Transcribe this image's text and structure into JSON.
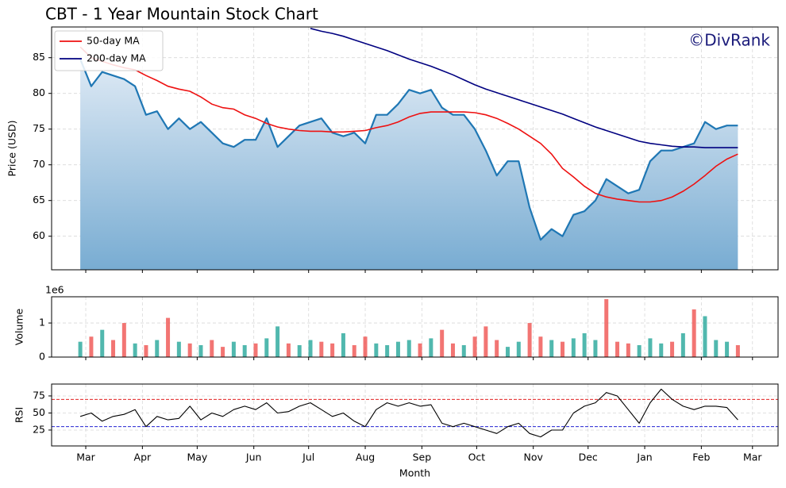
{
  "chart_data": [
    {
      "type": "line",
      "title": "CBT - 1 Year Mountain Stock Chart",
      "ylabel": "Price (USD)",
      "watermark": "©DivRank",
      "watermark_color": "#1a1a7a",
      "x": [
        -3,
        3,
        9,
        15,
        21,
        27,
        33,
        39,
        45,
        51,
        57,
        63,
        69,
        75,
        81,
        87,
        93,
        99,
        105,
        111,
        117,
        123,
        129,
        135,
        141,
        147,
        153,
        159,
        165,
        171,
        177,
        183,
        189,
        195,
        201,
        207,
        213,
        219,
        225,
        231,
        237,
        243,
        249,
        255,
        261,
        267,
        273,
        279,
        285,
        291,
        297,
        303,
        309,
        315,
        321,
        327,
        333,
        339,
        345,
        351,
        357
      ],
      "values": [
        84.8,
        81,
        83,
        82.5,
        82,
        81,
        77,
        77.5,
        75,
        76.5,
        75,
        76,
        74.5,
        73,
        72.5,
        73.5,
        73.5,
        76.5,
        72.5,
        74,
        75.5,
        76,
        76.5,
        74.5,
        74,
        74.5,
        73,
        77,
        77,
        78.5,
        80.5,
        80,
        80.5,
        78,
        77,
        77,
        75,
        72,
        68.5,
        70.5,
        70.5,
        64,
        59.5,
        61,
        60,
        63,
        63.5,
        65,
        68,
        67,
        66,
        66.5,
        70.5,
        72,
        72,
        72.5,
        73,
        76,
        75,
        75.5,
        75.5
      ],
      "color": "#1f77b4",
      "fill_colors": [
        "#dfeaf5",
        "#78acd2"
      ],
      "series": [
        {
          "name": "50-day MA",
          "color": "#ee1111",
          "values": [
            86.5,
            85,
            84.5,
            84,
            83.6,
            83.3,
            82.5,
            81.8,
            81,
            80.6,
            80.3,
            79.5,
            78.5,
            78,
            77.8,
            77,
            76.5,
            75.8,
            75.3,
            75,
            74.8,
            74.7,
            74.7,
            74.6,
            74.6,
            74.7,
            74.8,
            75.2,
            75.5,
            76,
            76.7,
            77.2,
            77.4,
            77.4,
            77.4,
            77.4,
            77.3,
            77,
            76.5,
            75.8,
            75,
            74,
            73,
            71.5,
            69.5,
            68.3,
            67,
            66,
            65.5,
            65.2,
            65,
            64.8,
            64.8,
            65,
            65.5,
            66.3,
            67.3,
            68.5,
            69.8,
            70.8,
            71.5
          ]
        },
        {
          "name": "200-day MA",
          "color": "#000080",
          "values": [
            null,
            null,
            null,
            null,
            null,
            null,
            null,
            null,
            null,
            null,
            null,
            null,
            null,
            null,
            null,
            null,
            null,
            null,
            null,
            null,
            null,
            89.1,
            88.7,
            88.4,
            88,
            87.5,
            87,
            86.5,
            86,
            85.4,
            84.8,
            84.3,
            83.8,
            83.2,
            82.6,
            81.9,
            81.2,
            80.6,
            80.1,
            79.6,
            79.1,
            78.6,
            78.1,
            77.6,
            77.1,
            76.5,
            75.9,
            75.3,
            74.8,
            74.3,
            73.8,
            73.3,
            73,
            72.8,
            72.6,
            72.5,
            72.5,
            72.4,
            72.4,
            72.4,
            72.4
          ]
        }
      ],
      "legend": "upper left",
      "grid": true,
      "xlim": [
        -18.7,
        379
      ],
      "xticks": [
        0,
        31,
        61,
        92,
        122,
        153,
        184,
        214,
        245,
        275,
        306,
        337,
        365
      ],
      "ylim": [
        55.3,
        89.3
      ],
      "yticks": [
        60,
        65,
        70,
        75,
        80,
        85
      ]
    },
    {
      "type": "bar",
      "ylabel": "Volume",
      "offset_label": "1e6",
      "x": [
        -3,
        3,
        9,
        15,
        21,
        27,
        33,
        39,
        45,
        51,
        57,
        63,
        69,
        75,
        81,
        87,
        93,
        99,
        105,
        111,
        117,
        123,
        129,
        135,
        141,
        147,
        153,
        159,
        165,
        171,
        177,
        183,
        189,
        195,
        201,
        207,
        213,
        219,
        225,
        231,
        237,
        243,
        249,
        255,
        261,
        267,
        273,
        279,
        285,
        291,
        297,
        303,
        309,
        315,
        321,
        327,
        333,
        339,
        345,
        351,
        357
      ],
      "values": [
        450000,
        600000,
        800000,
        500000,
        1000000,
        400000,
        350000,
        500000,
        1150000,
        450000,
        400000,
        350000,
        500000,
        300000,
        450000,
        350000,
        400000,
        550000,
        900000,
        400000,
        350000,
        500000,
        450000,
        400000,
        700000,
        350000,
        600000,
        400000,
        350000,
        450000,
        500000,
        400000,
        550000,
        800000,
        400000,
        350000,
        600000,
        900000,
        500000,
        300000,
        450000,
        1000000,
        600000,
        500000,
        450000,
        550000,
        700000,
        500000,
        1700000,
        450000,
        400000,
        350000,
        550000,
        400000,
        450000,
        700000,
        1400000,
        1200000,
        500000,
        450000,
        350000
      ],
      "colors": [
        "#26a69a",
        "#ef5350",
        "#26a69a",
        "#ef5350",
        "#ef5350",
        "#26a69a",
        "#ef5350",
        "#26a69a",
        "#ef5350",
        "#26a69a",
        "#ef5350",
        "#26a69a",
        "#ef5350",
        "#ef5350",
        "#26a69a",
        "#26a69a",
        "#ef5350",
        "#26a69a",
        "#26a69a",
        "#ef5350",
        "#26a69a",
        "#26a69a",
        "#ef5350",
        "#ef5350",
        "#26a69a",
        "#ef5350",
        "#ef5350",
        "#26a69a",
        "#26a69a",
        "#26a69a",
        "#26a69a",
        "#ef5350",
        "#26a69a",
        "#ef5350",
        "#ef5350",
        "#26a69a",
        "#ef5350",
        "#ef5350",
        "#ef5350",
        "#26a69a",
        "#26a69a",
        "#ef5350",
        "#ef5350",
        "#26a69a",
        "#ef5350",
        "#26a69a",
        "#26a69a",
        "#26a69a",
        "#ef5350",
        "#ef5350",
        "#ef5350",
        "#26a69a",
        "#26a69a",
        "#26a69a",
        "#ef5350",
        "#26a69a",
        "#ef5350",
        "#26a69a",
        "#26a69a",
        "#26a69a",
        "#ef5350"
      ],
      "grid": true,
      "xlim": [
        -18.7,
        379
      ],
      "xticks": [
        0,
        31,
        61,
        92,
        122,
        153,
        184,
        214,
        245,
        275,
        306,
        337,
        365
      ],
      "ylim": [
        0,
        1770000
      ],
      "yticks": [
        0,
        {
          "value": 1000000,
          "label": "1"
        }
      ]
    },
    {
      "type": "line",
      "ylabel": "RSI",
      "xlabel": "Month",
      "x": [
        -3,
        3,
        9,
        15,
        21,
        27,
        33,
        39,
        45,
        51,
        57,
        63,
        69,
        75,
        81,
        87,
        93,
        99,
        105,
        111,
        117,
        123,
        129,
        135,
        141,
        147,
        153,
        159,
        165,
        171,
        177,
        183,
        189,
        195,
        201,
        207,
        213,
        219,
        225,
        231,
        237,
        243,
        249,
        255,
        261,
        267,
        273,
        279,
        285,
        291,
        297,
        303,
        309,
        315,
        321,
        327,
        333,
        339,
        345,
        351,
        357
      ],
      "values": [
        45,
        50,
        38,
        45,
        48,
        55,
        30,
        45,
        40,
        42,
        60,
        40,
        50,
        45,
        55,
        60,
        55,
        65,
        50,
        52,
        60,
        65,
        55,
        45,
        50,
        38,
        30,
        55,
        65,
        60,
        65,
        60,
        62,
        35,
        30,
        35,
        30,
        25,
        20,
        30,
        35,
        20,
        15,
        25,
        25,
        50,
        60,
        65,
        80,
        75,
        55,
        35,
        65,
        85,
        70,
        60,
        55,
        60,
        60,
        58,
        40
      ],
      "color": "#000000",
      "hlines": [
        {
          "value": 70,
          "color": "#dd0000"
        },
        {
          "value": 30,
          "color": "#0000cc"
        }
      ],
      "grid": true,
      "xlim": [
        -18.7,
        379
      ],
      "xticks": [
        {
          "value": 0,
          "label": "Mar"
        },
        {
          "value": 31,
          "label": "Apr"
        },
        {
          "value": 61,
          "label": "May"
        },
        {
          "value": 92,
          "label": "Jun"
        },
        {
          "value": 122,
          "label": "Jul"
        },
        {
          "value": 153,
          "label": "Aug"
        },
        {
          "value": 184,
          "label": "Sep"
        },
        {
          "value": 214,
          "label": "Oct"
        },
        {
          "value": 245,
          "label": "Nov"
        },
        {
          "value": 275,
          "label": "Dec"
        },
        {
          "value": 306,
          "label": "Jan"
        },
        {
          "value": 337,
          "label": "Feb"
        },
        {
          "value": 365,
          "label": "Mar"
        }
      ],
      "ylim": [
        1.7,
        92.4
      ],
      "yticks": [
        25,
        50,
        75
      ]
    }
  ]
}
